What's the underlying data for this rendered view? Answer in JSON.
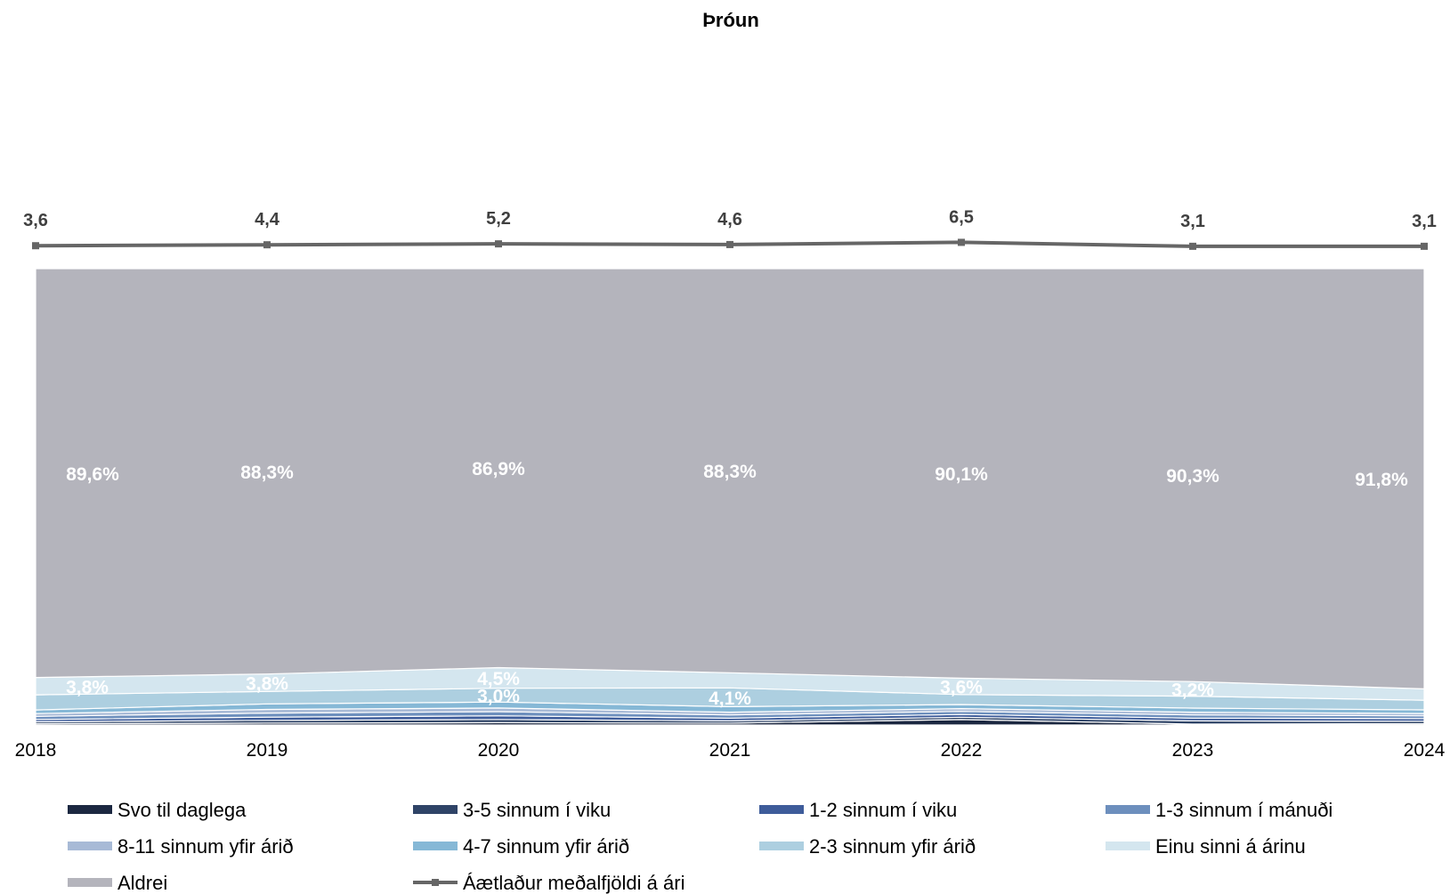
{
  "chart_data": {
    "type": "area",
    "stacked": true,
    "normalized": true,
    "title": "Þróun",
    "xlabel": "",
    "ylabel": "",
    "ylim": [
      0,
      100
    ],
    "grid": false,
    "legend_position": "bottom",
    "categories": [
      "2018",
      "2019",
      "2020",
      "2021",
      "2022",
      "2023",
      "2024"
    ],
    "series": [
      {
        "name": "Svo til daglega",
        "color": "#1c2841",
        "values": [
          0.3,
          0.4,
          0.5,
          0.4,
          1.2,
          0.2,
          0.3
        ]
      },
      {
        "name": "3-5 sinnum í viku",
        "color": "#2f4467",
        "values": [
          0.4,
          0.6,
          0.7,
          0.5,
          0.5,
          0.7,
          0.5
        ]
      },
      {
        "name": "1-2 sinnum í viku",
        "color": "#3e5c9a",
        "values": [
          0.5,
          0.7,
          0.8,
          0.6,
          0.6,
          0.6,
          0.6
        ]
      },
      {
        "name": "1-3 sinnum í mánuði",
        "color": "#6d8fbd",
        "values": [
          0.7,
          0.9,
          0.9,
          0.7,
          0.7,
          0.7,
          0.6
        ]
      },
      {
        "name": "8-11 sinnum yfir árið",
        "color": "#a8bad6",
        "values": [
          0.6,
          0.8,
          0.8,
          0.6,
          0.6,
          0.6,
          0.5
        ]
      },
      {
        "name": "4-7 sinnum yfir árið",
        "color": "#86b8d6",
        "values": [
          0.8,
          1.2,
          1.3,
          1.2,
          0.9,
          0.9,
          0.8
        ]
      },
      {
        "name": "2-3 sinnum yfir árið",
        "color": "#adcfe0",
        "values": [
          3.3,
          2.7,
          3.0,
          4.1,
          2.2,
          2.6,
          2.1
        ]
      },
      {
        "name": "Einu sinni á árinu",
        "color": "#d4e6ef",
        "values": [
          3.8,
          3.8,
          4.5,
          3.3,
          3.6,
          3.2,
          2.5
        ]
      },
      {
        "name": "Aldrei",
        "color": "#b4b4bc",
        "values": [
          89.6,
          88.3,
          86.9,
          88.3,
          90.1,
          90.3,
          91.8
        ]
      }
    ],
    "line_series": {
      "name": "Áætlaður meðalfjöldi á ári",
      "color": "#666666",
      "values": [
        3.6,
        4.4,
        5.2,
        4.6,
        6.5,
        3.1,
        3.1
      ],
      "labels": [
        "3,6",
        "4,4",
        "5,2",
        "4,6",
        "6,5",
        "3,1",
        "3,1"
      ]
    },
    "data_labels": [
      {
        "series": "Aldrei",
        "year": "2018",
        "text": "89,6%"
      },
      {
        "series": "Aldrei",
        "year": "2019",
        "text": "88,3%"
      },
      {
        "series": "Aldrei",
        "year": "2020",
        "text": "86,9%"
      },
      {
        "series": "Aldrei",
        "year": "2021",
        "text": "88,3%"
      },
      {
        "series": "Aldrei",
        "year": "2022",
        "text": "90,1%"
      },
      {
        "series": "Aldrei",
        "year": "2023",
        "text": "90,3%"
      },
      {
        "series": "Aldrei",
        "year": "2024",
        "text": "91,8%"
      },
      {
        "series": "Einu sinni á árinu",
        "year": "2018",
        "text": "3,8%"
      },
      {
        "series": "Einu sinni á árinu",
        "year": "2019",
        "text": "3,8%"
      },
      {
        "series": "Einu sinni á árinu",
        "year": "2020",
        "text": "4,5%"
      },
      {
        "series": "2-3 sinnum yfir árið",
        "year": "2020",
        "text": "3,0%"
      },
      {
        "series": "2-3 sinnum yfir árið",
        "year": "2021",
        "text": "4,1%"
      },
      {
        "series": "Einu sinni á árinu",
        "year": "2022",
        "text": "3,6%"
      },
      {
        "series": "Einu sinni á árinu",
        "year": "2023",
        "text": "3,2%"
      }
    ]
  }
}
